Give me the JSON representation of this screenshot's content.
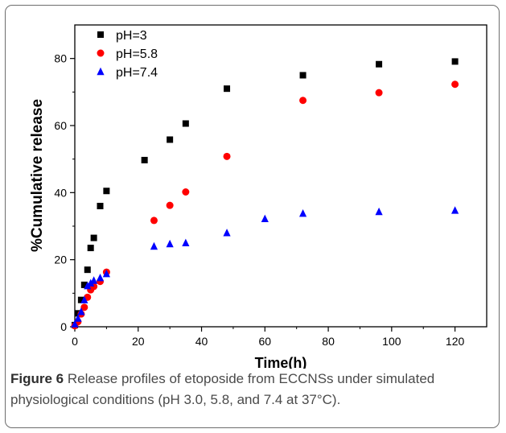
{
  "chart_data": {
    "type": "scatter",
    "xlabel": "Time(h)",
    "ylabel": "%Cumulative release",
    "xlim": [
      0,
      130
    ],
    "ylim": [
      0,
      90
    ],
    "xticks": [
      0,
      20,
      40,
      60,
      80,
      100,
      120
    ],
    "yticks": [
      0,
      20,
      40,
      60,
      80
    ],
    "grid": false,
    "legend": "top-left",
    "series": [
      {
        "name": "pH=3",
        "marker": "square",
        "color": "#000000",
        "points": [
          [
            0,
            0.5
          ],
          [
            1,
            4
          ],
          [
            2,
            8
          ],
          [
            3,
            12.5
          ],
          [
            4,
            17
          ],
          [
            5,
            23.5
          ],
          [
            6,
            26.5
          ],
          [
            8,
            36
          ],
          [
            10,
            40.5
          ],
          [
            22,
            49.7
          ],
          [
            30,
            55.8
          ],
          [
            35,
            60.6
          ],
          [
            48,
            71
          ],
          [
            72,
            75
          ],
          [
            96,
            78.3
          ],
          [
            120,
            79.1
          ]
        ]
      },
      {
        "name": "pH=5.8",
        "marker": "circle",
        "color": "#ff0000",
        "points": [
          [
            0,
            0.3
          ],
          [
            1,
            1.5
          ],
          [
            2,
            3.8
          ],
          [
            3,
            5.8
          ],
          [
            4,
            8.8
          ],
          [
            5,
            11
          ],
          [
            6,
            12
          ],
          [
            8,
            13.5
          ],
          [
            10,
            16.3
          ],
          [
            25,
            31.7
          ],
          [
            30,
            36.2
          ],
          [
            35,
            40.2
          ],
          [
            48,
            50.8
          ],
          [
            72,
            67.5
          ],
          [
            96,
            69.8
          ],
          [
            120,
            72.3
          ]
        ]
      },
      {
        "name": "pH=7.4",
        "marker": "triangle",
        "color": "#0000ff",
        "points": [
          [
            0,
            0.8
          ],
          [
            1,
            2.5
          ],
          [
            2,
            4.5
          ],
          [
            3,
            8
          ],
          [
            4,
            12.2
          ],
          [
            5,
            13
          ],
          [
            6,
            13.8
          ],
          [
            8,
            14.6
          ],
          [
            10,
            15.8
          ],
          [
            25,
            24
          ],
          [
            30,
            24.7
          ],
          [
            35,
            25
          ],
          [
            48,
            28
          ],
          [
            60,
            32.2
          ],
          [
            72,
            33.8
          ],
          [
            96,
            34.3
          ],
          [
            120,
            34.7
          ]
        ]
      }
    ]
  },
  "caption": {
    "label": "Figure 6",
    "text": " Release profiles of etoposide from ECCNSs under simulated physiological conditions (pH 3.0, 5.8, and 7.4 at 37°C)."
  }
}
